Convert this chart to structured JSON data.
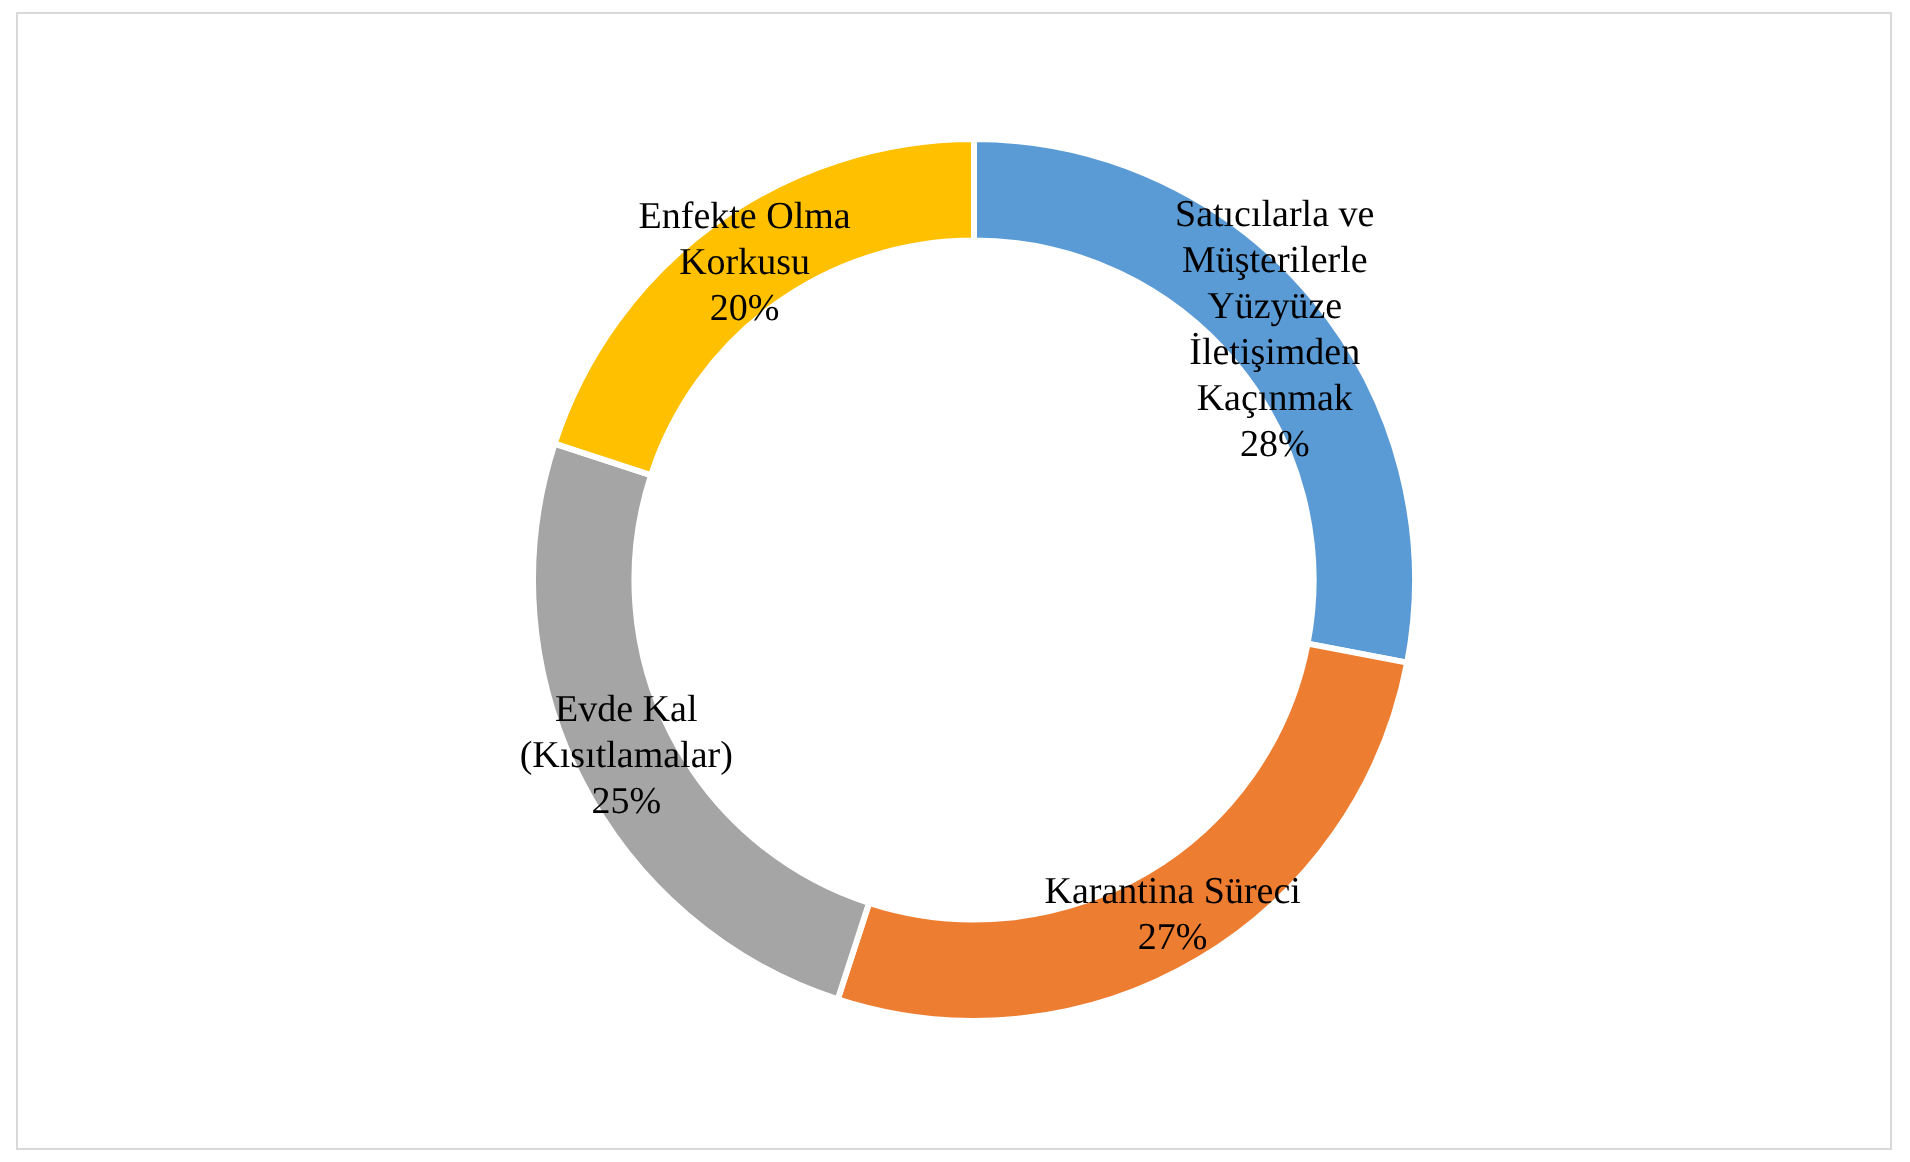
{
  "chart_data": {
    "type": "donut",
    "categories": [
      "Satıcılarla ve Müşterilerle Yüzyüze İletişimden Kaçınmak",
      "Karantina Süreci",
      "Evde Kal (Kısıtlamalar)",
      "Enfekte Olma Korkusu"
    ],
    "values": [
      28,
      27,
      25,
      20
    ],
    "colors": [
      "#5b9bd5",
      "#ed7d31",
      "#a5a5a5",
      "#ffc000"
    ],
    "value_labels": [
      "28%",
      "27%",
      "25%",
      "20%"
    ],
    "legend": false
  }
}
